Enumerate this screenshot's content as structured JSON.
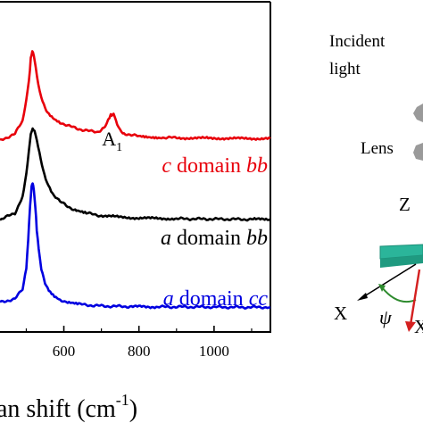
{
  "chart_data": {
    "type": "line",
    "xlabel": "an shift (cm",
    "xlabel_sup": "-1",
    "xlabel_close": ")",
    "xlim": [
      430,
      1150
    ],
    "ylim": [
      0,
      1
    ],
    "grid": false,
    "x_ticks": [
      600,
      800,
      1000
    ],
    "x_tick_labels": [
      "600",
      "800",
      "1000"
    ],
    "series": [
      {
        "name_parts": [
          "c",
          " domain ",
          "bb"
        ],
        "color": "#e8000b",
        "x": [
          430,
          470,
          490,
          500,
          507,
          512,
          516,
          520,
          525,
          532,
          540,
          550,
          560,
          575,
          590,
          610,
          630,
          650,
          670,
          690,
          700,
          710,
          718,
          725,
          730,
          735,
          742,
          750,
          760,
          780,
          800,
          830,
          860,
          900,
          950,
          1000,
          1050,
          1100,
          1150
        ],
        "y": [
          0.58,
          0.6,
          0.64,
          0.7,
          0.76,
          0.83,
          0.85,
          0.84,
          0.8,
          0.75,
          0.71,
          0.68,
          0.66,
          0.645,
          0.635,
          0.625,
          0.618,
          0.612,
          0.608,
          0.606,
          0.61,
          0.622,
          0.64,
          0.656,
          0.66,
          0.654,
          0.632,
          0.612,
          0.602,
          0.596,
          0.593,
          0.59,
          0.589,
          0.588,
          0.587,
          0.587,
          0.586,
          0.586,
          0.586
        ]
      },
      {
        "name_parts": [
          "a",
          " domain ",
          "bb"
        ],
        "color": "#000000",
        "x": [
          430,
          470,
          490,
          500,
          507,
          512,
          517,
          522,
          528,
          535,
          545,
          555,
          570,
          590,
          610,
          630,
          660,
          700,
          750,
          800,
          850,
          900,
          1000,
          1100,
          1150
        ],
        "y": [
          0.34,
          0.36,
          0.41,
          0.48,
          0.55,
          0.6,
          0.615,
          0.61,
          0.58,
          0.54,
          0.49,
          0.455,
          0.42,
          0.395,
          0.38,
          0.37,
          0.36,
          0.352,
          0.348,
          0.345,
          0.344,
          0.343,
          0.342,
          0.341,
          0.341
        ]
      },
      {
        "name_parts": [
          "a",
          " domain ",
          "cc"
        ],
        "color": "#0000e0",
        "x": [
          430,
          470,
          490,
          500,
          505,
          510,
          514,
          517,
          520,
          524,
          528,
          533,
          540,
          550,
          560,
          575,
          590,
          610,
          640,
          680,
          720,
          780,
          850,
          950,
          1050,
          1150
        ],
        "y": [
          0.09,
          0.1,
          0.13,
          0.19,
          0.28,
          0.38,
          0.44,
          0.45,
          0.43,
          0.38,
          0.31,
          0.25,
          0.19,
          0.15,
          0.125,
          0.108,
          0.098,
          0.09,
          0.084,
          0.08,
          0.078,
          0.077,
          0.076,
          0.076,
          0.075,
          0.075
        ]
      }
    ],
    "annotations": [
      {
        "text": "A",
        "subscript": "1"
      }
    ],
    "inset": {
      "labels": [
        "Incident",
        "light",
        "Lens",
        "Z",
        "X",
        "ψ",
        "X"
      ],
      "colors": {
        "slab": "#2bb59a",
        "slab_edge": "#1c8f78",
        "arc": "#2e8b2e",
        "red_arrow": "#d42020",
        "lens": "#9a9a9a"
      }
    }
  }
}
